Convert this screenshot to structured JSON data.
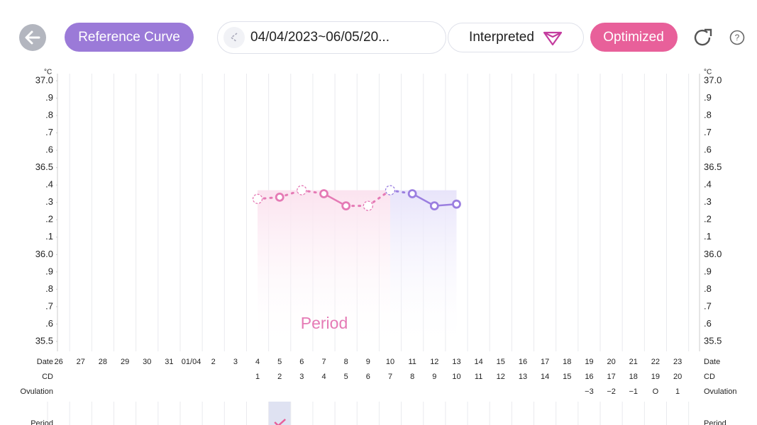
{
  "header": {
    "reference_button": "Reference Curve",
    "date_range": "04/04/2023~06/05/20...",
    "interpreted": "Interpreted",
    "optimized": "Optimized"
  },
  "chart_data": {
    "type": "line",
    "y_unit": "°C",
    "categories": [
      "26",
      "27",
      "28",
      "29",
      "30",
      "31",
      "01/04",
      "2",
      "3",
      "4",
      "5",
      "6",
      "7",
      "8",
      "9",
      "10",
      "11",
      "12",
      "13",
      "14",
      "15",
      "16",
      "17",
      "18",
      "19",
      "20",
      "21",
      "22",
      "23"
    ],
    "cycle_day": [
      null,
      null,
      null,
      null,
      null,
      null,
      null,
      null,
      null,
      1,
      2,
      3,
      4,
      5,
      6,
      7,
      8,
      9,
      10,
      11,
      12,
      13,
      14,
      15,
      16,
      17,
      18,
      19,
      20
    ],
    "ovulation_day": [
      null,
      null,
      null,
      null,
      null,
      null,
      null,
      null,
      null,
      null,
      null,
      null,
      null,
      null,
      null,
      null,
      null,
      null,
      null,
      null,
      null,
      null,
      null,
      null,
      "−3",
      "−2",
      "−1",
      "O",
      "1"
    ],
    "row_labels": [
      "Date",
      "CD",
      "Ovulation"
    ],
    "series": [
      {
        "color": "#e57ab5",
        "values": [
          null,
          null,
          null,
          null,
          null,
          null,
          null,
          null,
          null,
          36.32,
          36.33,
          36.37,
          36.35,
          36.28,
          36.28,
          null,
          null,
          null,
          null,
          null,
          null,
          null,
          null,
          null,
          null,
          null,
          null,
          null,
          null
        ],
        "dashed_points": [
          null,
          null,
          null,
          null,
          null,
          null,
          null,
          null,
          null,
          true,
          false,
          true,
          false,
          false,
          true,
          null,
          null,
          null,
          null,
          null,
          null,
          null,
          null,
          null,
          null,
          null,
          null,
          null,
          null
        ]
      },
      {
        "color": "#9b7fe0",
        "values": [
          null,
          null,
          null,
          null,
          null,
          null,
          null,
          null,
          null,
          null,
          null,
          null,
          null,
          null,
          null,
          36.37,
          36.35,
          36.28,
          36.29,
          null,
          null,
          null,
          null,
          null,
          null,
          null,
          null,
          null,
          null
        ],
        "dashed_points": [
          null,
          null,
          null,
          null,
          null,
          null,
          null,
          null,
          null,
          null,
          null,
          null,
          null,
          null,
          null,
          true,
          false,
          false,
          false,
          null,
          null,
          null,
          null,
          null,
          null,
          null,
          null,
          null,
          null
        ]
      }
    ],
    "annotation": "Period",
    "ylim": [
      35.5,
      37.0
    ],
    "yticks": [
      {
        "value": 37.0,
        "label": "37.0"
      },
      {
        "value": 36.9,
        "label": ".9"
      },
      {
        "value": 36.8,
        "label": ".8"
      },
      {
        "value": 36.7,
        "label": ".7"
      },
      {
        "value": 36.6,
        "label": ".6"
      },
      36.5,
      {
        "value": 36.4,
        "label": ".4"
      },
      {
        "value": 36.3,
        "label": ".3"
      },
      {
        "value": 36.2,
        "label": ".2"
      },
      {
        "value": 36.1,
        "label": ".1"
      },
      {
        "value": 36.0,
        "label": "36.0"
      },
      {
        "value": 35.9,
        "label": ".9"
      },
      {
        "value": 35.8,
        "label": ".8"
      },
      {
        "value": 35.7,
        "label": ".7"
      },
      {
        "value": 35.6,
        "label": ".6"
      },
      35.5
    ],
    "grid_x": true,
    "grid_y": false
  },
  "bottom_table": {
    "row_label": "Period"
  }
}
